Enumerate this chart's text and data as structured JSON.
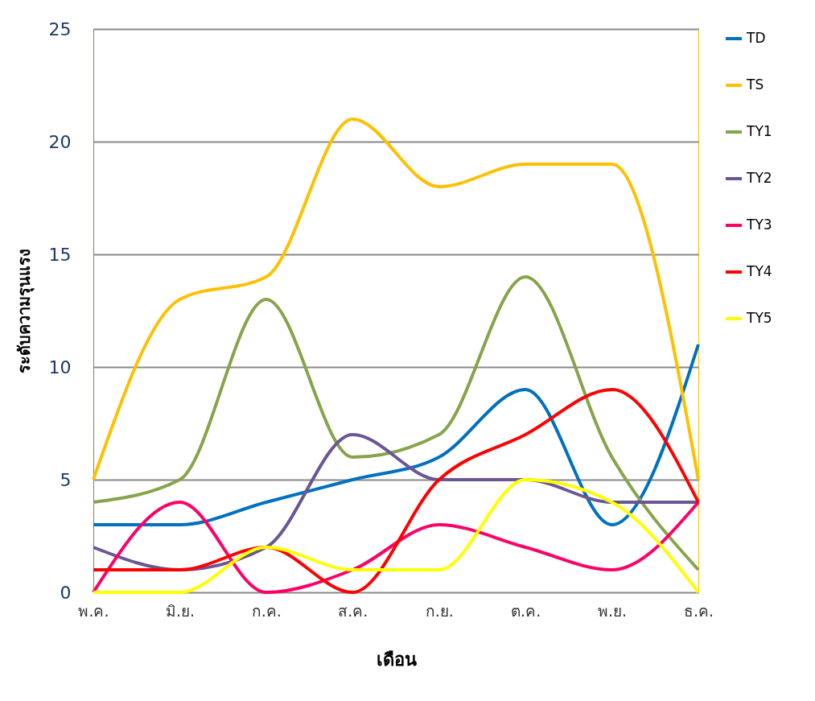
{
  "chart_data": {
    "type": "line",
    "xlabel": "เดือน",
    "ylabel": "ระดับความรุนแรง",
    "categories": [
      "พ.ค.",
      "มิ.ย.",
      "ก.ค.",
      "ส.ค.",
      "ก.ย.",
      "ต.ค.",
      "พ.ย.",
      "ธ.ค."
    ],
    "series": [
      {
        "name": "TD",
        "color": "#0070c0",
        "values": [
          3,
          3,
          4,
          5,
          6,
          9,
          3,
          11
        ]
      },
      {
        "name": "TS",
        "color": "#ffc000",
        "values": [
          5,
          13,
          14,
          21,
          18,
          19,
          19,
          5
        ]
      },
      {
        "name": "TY1",
        "color": "#86a44a",
        "values": [
          4,
          5,
          13,
          6,
          7,
          14,
          6,
          1
        ]
      },
      {
        "name": "TY2",
        "color": "#6a5694",
        "values": [
          2,
          1,
          2,
          7,
          5,
          5,
          4,
          4
        ]
      },
      {
        "name": "TY3",
        "color": "#ff0066",
        "values": [
          0,
          4,
          0,
          1,
          3,
          2,
          1,
          4
        ]
      },
      {
        "name": "TY4",
        "color": "#ff0000",
        "values": [
          1,
          1,
          2,
          0,
          5,
          7,
          9,
          4
        ]
      },
      {
        "name": "TY5",
        "color": "#ffff00",
        "values": [
          0,
          0,
          2,
          1,
          1,
          5,
          4,
          0
        ]
      }
    ],
    "ylim": [
      0,
      25
    ],
    "yticks": [
      0,
      5,
      10,
      15,
      20,
      25
    ],
    "grid": "y",
    "legend": "right",
    "marker": "none",
    "line_style": "solid"
  }
}
